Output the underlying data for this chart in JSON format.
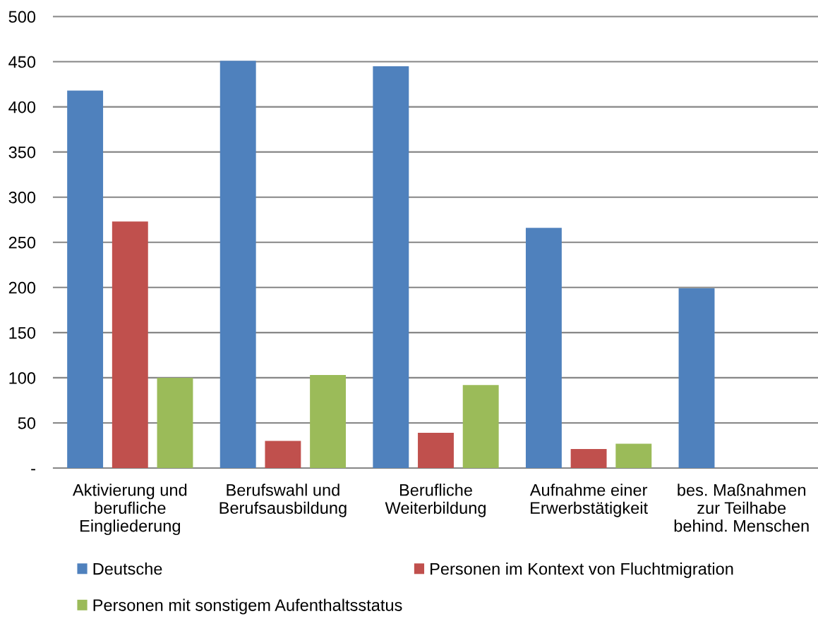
{
  "chart_data": {
    "type": "bar",
    "categories": [
      "Aktivierung und\nberufliche\nEingliederung",
      "Berufswahl und\nBerufsausbildung",
      "Berufliche\nWeiterbildung",
      "Aufnahme einer\nErwerbstätigkeit",
      "bes. Maßnahmen\nzur Teilhabe\nbehind. Menschen"
    ],
    "series": [
      {
        "name": "Deutsche",
        "color": "#4f81bd",
        "values": [
          418,
          451,
          445,
          266,
          199
        ]
      },
      {
        "name": "Personen im Kontext von Fluchtmigration",
        "color": "#c0504d",
        "values": [
          273,
          30,
          39,
          21,
          null
        ]
      },
      {
        "name": "Personen mit sonstigem Aufenthaltsstatus",
        "color": "#9bbb59",
        "values": [
          100,
          103,
          92,
          27,
          null
        ]
      }
    ],
    "ylim": [
      0,
      500
    ],
    "yticks": [
      {
        "value": 0,
        "label": "-"
      },
      50,
      100,
      150,
      200,
      250,
      300,
      350,
      400,
      450,
      500
    ],
    "grid": "y",
    "legend": "bottom"
  }
}
